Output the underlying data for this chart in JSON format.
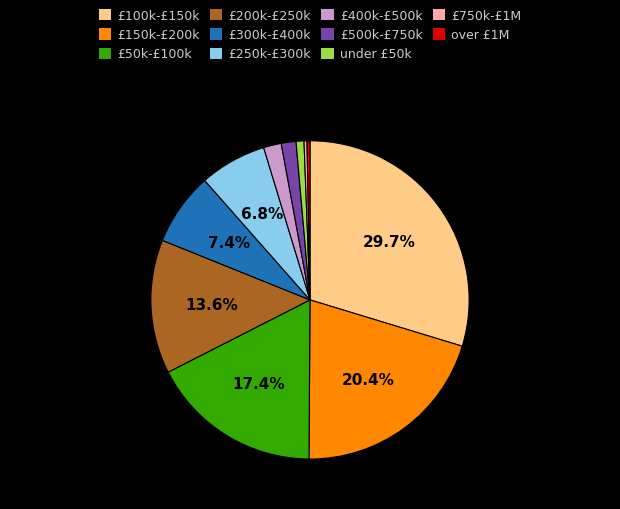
{
  "labels": [
    "£100k-£150k",
    "£150k-£200k",
    "£50k-£100k",
    "£200k-£250k",
    "£300k-£400k",
    "£250k-£300k",
    "£400k-£500k",
    "£500k-£750k",
    "under £50k",
    "£750k-£1M",
    "over £1M"
  ],
  "values": [
    29.7,
    20.4,
    17.4,
    13.6,
    7.4,
    6.8,
    1.8,
    1.5,
    0.8,
    0.3,
    0.3
  ],
  "colors": [
    "#FFCC88",
    "#FF8800",
    "#33AA00",
    "#AA6622",
    "#1E72B8",
    "#88CCEE",
    "#CC99CC",
    "#7744AA",
    "#99DD44",
    "#FFAAAA",
    "#DD0000"
  ],
  "background_color": "#000000",
  "text_color": "#cccccc",
  "label_color": "#000000",
  "figsize": [
    6.2,
    5.1
  ],
  "dpi": 100
}
